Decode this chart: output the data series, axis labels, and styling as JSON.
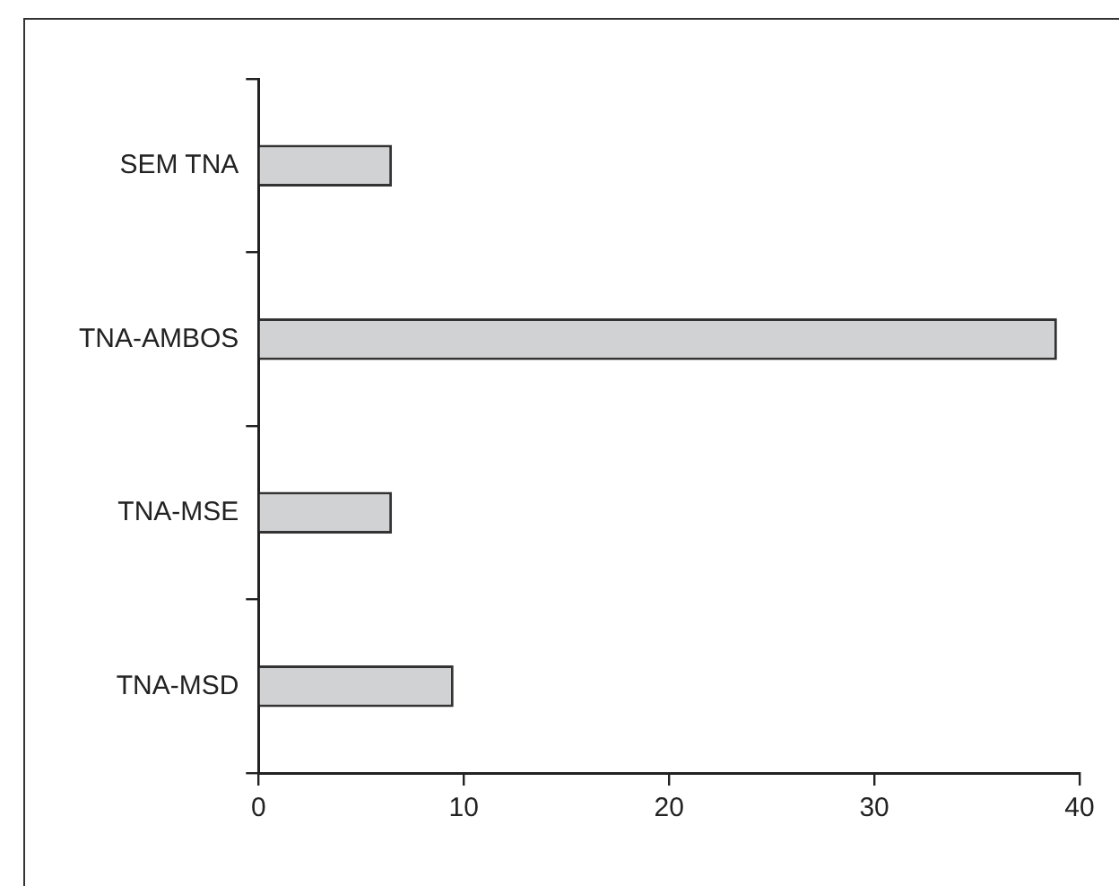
{
  "chart_data": {
    "type": "bar",
    "orientation": "horizontal",
    "categories": [
      "SEM TNA",
      "TNA-AMBOS",
      "TNA-MSE",
      "TNA-MSD"
    ],
    "values": [
      6.5,
      38.9,
      6.5,
      9.5
    ],
    "color": "#d1d2d4",
    "xlim": [
      0,
      40
    ],
    "xticks": [
      0,
      10,
      20,
      30,
      40
    ],
    "grid": false,
    "legend": false
  }
}
